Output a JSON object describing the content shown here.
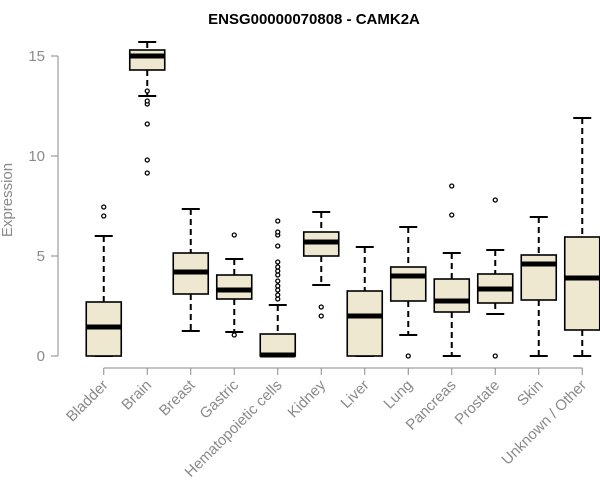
{
  "chart_data": {
    "type": "box",
    "title": "ENSG00000070808 - CAMK2A",
    "xlabel": "",
    "ylabel": "Expression",
    "ylim": [
      0,
      15
    ],
    "yticks": [
      0,
      5,
      10,
      15
    ],
    "categories": [
      "Bladder",
      "Brain",
      "Breast",
      "Gastric",
      "Hematopoietic cells",
      "Kidney",
      "Liver",
      "Lung",
      "Pancreas",
      "Prostate",
      "Skin",
      "Unknown / Other"
    ],
    "box_fill": "#efe8d0",
    "box_stroke": "#000000",
    "axis_color": "#8a8a8a",
    "boxes": [
      {
        "category": "Bladder",
        "whisker_low": 0,
        "q1": 0,
        "median": 1.45,
        "q3": 2.7,
        "whisker_high": 6.0,
        "outliers": [
          7.0,
          7.45
        ]
      },
      {
        "category": "Brain",
        "whisker_low": 13.0,
        "q1": 14.3,
        "median": 15.0,
        "q3": 15.3,
        "whisker_high": 15.7,
        "outliers": [
          12.6,
          12.75,
          13.25,
          11.6,
          9.8,
          9.15
        ]
      },
      {
        "category": "Breast",
        "whisker_low": 1.25,
        "q1": 3.1,
        "median": 4.2,
        "q3": 5.15,
        "whisker_high": 7.35,
        "outliers": []
      },
      {
        "category": "Gastric",
        "whisker_low": 1.2,
        "q1": 2.85,
        "median": 3.3,
        "q3": 4.05,
        "whisker_high": 4.85,
        "outliers": [
          6.05,
          1.05
        ]
      },
      {
        "category": "Hematopoietic cells",
        "whisker_low": 0,
        "q1": 0,
        "median": 0.05,
        "q3": 1.1,
        "whisker_high": 2.55,
        "outliers": [
          2.85,
          3.05,
          3.3,
          3.5,
          3.75,
          4.05,
          4.25,
          4.45,
          4.7,
          5.5,
          6.05,
          6.2,
          6.75
        ]
      },
      {
        "category": "Kidney",
        "whisker_low": 3.55,
        "q1": 5.0,
        "median": 5.7,
        "q3": 6.2,
        "whisker_high": 7.2,
        "outliers": [
          2.45,
          2.0
        ]
      },
      {
        "category": "Liver",
        "whisker_low": 0,
        "q1": 0,
        "median": 2.0,
        "q3": 3.25,
        "whisker_high": 5.45,
        "outliers": []
      },
      {
        "category": "Lung",
        "whisker_low": 1.05,
        "q1": 2.75,
        "median": 4.0,
        "q3": 4.45,
        "whisker_high": 6.45,
        "outliers": [
          0.0
        ]
      },
      {
        "category": "Pancreas",
        "whisker_low": 0,
        "q1": 2.2,
        "median": 2.75,
        "q3": 3.85,
        "whisker_high": 5.15,
        "outliers": [
          7.05,
          8.5
        ]
      },
      {
        "category": "Prostate",
        "whisker_low": 2.1,
        "q1": 2.65,
        "median": 3.35,
        "q3": 4.1,
        "whisker_high": 5.3,
        "outliers": [
          7.8,
          0.0
        ]
      },
      {
        "category": "Skin",
        "whisker_low": 0,
        "q1": 2.8,
        "median": 4.6,
        "q3": 5.05,
        "whisker_high": 6.95,
        "outliers": []
      },
      {
        "category": "Unknown / Other",
        "whisker_low": 0,
        "q1": 1.3,
        "median": 3.9,
        "q3": 5.95,
        "whisker_high": 11.9,
        "outliers": []
      }
    ]
  }
}
